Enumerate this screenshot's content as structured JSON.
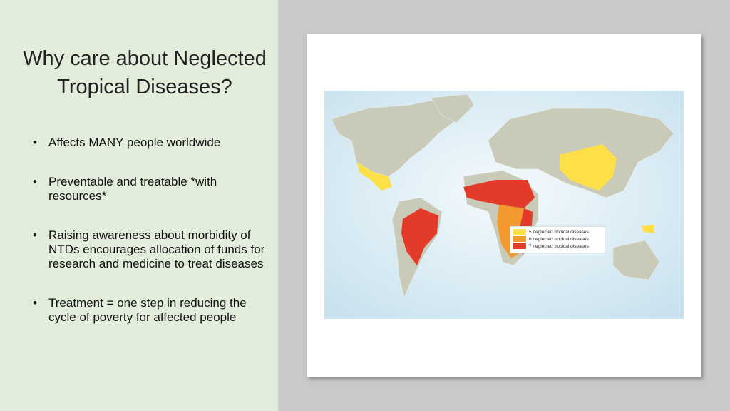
{
  "slide": {
    "title": "Why care about Neglected Tropical Diseases?",
    "bullets": [
      "Affects MANY people worldwide",
      "Preventable and treatable *with resources*",
      "Raising awareness about morbidity of NTDs encourages allocation of funds for research and medicine to treat diseases",
      "Treatment = one step in reducing the cycle of poverty for affected people"
    ]
  },
  "map": {
    "legend": [
      {
        "label": "5 neglected tropical diseases",
        "color": "#fde047"
      },
      {
        "label": "6 neglected tropical diseases",
        "color": "#f39a2e"
      },
      {
        "label": "7 neglected tropical diseases",
        "color": "#e43a2a"
      }
    ],
    "land_color": "#c9cbb8",
    "ocean_color": "#dcedf5"
  }
}
